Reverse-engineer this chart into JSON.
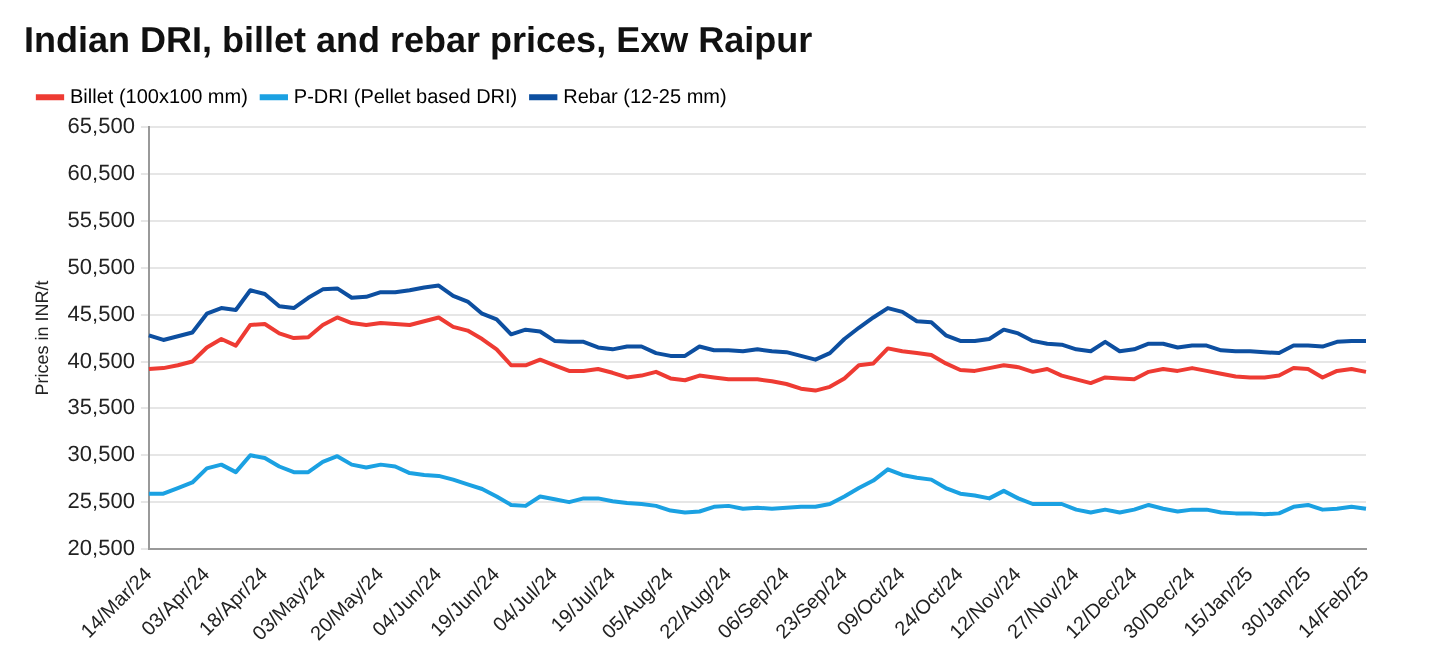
{
  "chart_data": {
    "type": "line",
    "title": "Indian DRI, billet and rebar prices, Exw Raipur",
    "ylabel": "Prices in INR/t",
    "categories": [
      "14/Mar/24",
      null,
      null,
      null,
      "03/Apr/24",
      null,
      null,
      null,
      "18/Apr/24",
      null,
      null,
      null,
      "03/May/24",
      null,
      null,
      null,
      "20/May/24",
      null,
      null,
      null,
      "04/Jun/24",
      null,
      null,
      null,
      "19/Jun/24",
      null,
      null,
      null,
      "04/Jul/24",
      null,
      null,
      null,
      "19/Jul/24",
      null,
      null,
      null,
      "05/Aug/24",
      null,
      null,
      null,
      "22/Aug/24",
      null,
      null,
      null,
      "06/Sep/24",
      null,
      null,
      null,
      "23/Sep/24",
      null,
      null,
      null,
      "09/Oct/24",
      null,
      null,
      null,
      "24/Oct/24",
      null,
      null,
      null,
      "12/Nov/24",
      null,
      null,
      null,
      "27/Nov/24",
      null,
      null,
      null,
      "12/Dec/24",
      null,
      null,
      null,
      "30/Dec/24",
      null,
      null,
      null,
      "15/Jan/25",
      null,
      null,
      null,
      "30/Jan/25",
      null,
      null,
      null,
      "14/Feb/25"
    ],
    "series": [
      {
        "name": "Billet (100x100 mm)",
        "color": "#ee3b33",
        "values": [
          39700,
          39800,
          40100,
          40500,
          42000,
          42900,
          42200,
          44400,
          44500,
          43500,
          43000,
          43100,
          44400,
          45200,
          44600,
          44400,
          44600,
          44500,
          44400,
          44800,
          45200,
          44200,
          43800,
          42900,
          41800,
          40100,
          40100,
          40700,
          40100,
          39500,
          39500,
          39700,
          39300,
          38800,
          39000,
          39400,
          38700,
          38500,
          39000,
          38800,
          38600,
          38600,
          38600,
          38400,
          38100,
          37600,
          37400,
          37800,
          38700,
          40100,
          40300,
          41900,
          41600,
          41400,
          41200,
          40300,
          39600,
          39500,
          39800,
          40100,
          39900,
          39400,
          39700,
          39000,
          38600,
          38200,
          38800,
          38700,
          38600,
          39400,
          39700,
          39500,
          39800,
          39500,
          39200,
          38900,
          38800,
          38800,
          39000,
          39800,
          39700,
          38800,
          39500,
          39700,
          39400
        ]
      },
      {
        "name": "P-DRI (Pellet based DRI)",
        "color": "#1ba1e2",
        "values": [
          26400,
          26400,
          27000,
          27600,
          29100,
          29500,
          28700,
          30500,
          30200,
          29300,
          28700,
          28700,
          29800,
          30400,
          29500,
          29200,
          29500,
          29300,
          28600,
          28400,
          28300,
          27900,
          27400,
          26900,
          26100,
          25200,
          25100,
          26100,
          25800,
          25500,
          25900,
          25900,
          25600,
          25400,
          25300,
          25100,
          24600,
          24400,
          24500,
          25000,
          25100,
          24800,
          24900,
          24800,
          24900,
          25000,
          25000,
          25300,
          26100,
          27000,
          27800,
          29000,
          28400,
          28100,
          27900,
          27000,
          26400,
          26200,
          25900,
          26700,
          25900,
          25300,
          25300,
          25300,
          24700,
          24400,
          24700,
          24400,
          24700,
          25200,
          24800,
          24500,
          24700,
          24700,
          24400,
          24300,
          24300,
          24200,
          24300,
          25000,
          25200,
          24700,
          24800,
          25000,
          24800
        ]
      },
      {
        "name": "Rebar (12-25 mm)",
        "color": "#0d4fa0",
        "values": [
          43300,
          42800,
          43200,
          43600,
          45600,
          46200,
          46000,
          48100,
          47700,
          46400,
          46200,
          47300,
          48200,
          48300,
          47300,
          47400,
          47900,
          47900,
          48100,
          48400,
          48600,
          47500,
          46900,
          45600,
          45000,
          43400,
          43900,
          43700,
          42700,
          42600,
          42600,
          42000,
          41800,
          42100,
          42100,
          41400,
          41100,
          41100,
          42100,
          41700,
          41700,
          41600,
          41800,
          41600,
          41500,
          41100,
          40700,
          41400,
          42900,
          44100,
          45200,
          46200,
          45800,
          44800,
          44700,
          43300,
          42700,
          42700,
          42900,
          43900,
          43500,
          42700,
          42400,
          42300,
          41800,
          41600,
          42600,
          41600,
          41800,
          42400,
          42400,
          42000,
          42200,
          42200,
          41700,
          41600,
          41600,
          41500,
          41400,
          42200,
          42200,
          42100,
          42600,
          42700,
          42700
        ]
      }
    ],
    "ylim": [
      20500,
      65500
    ],
    "yticks": [
      {
        "value": 20500,
        "label": "20,500"
      },
      {
        "value": 25500,
        "label": "25,500"
      },
      {
        "value": 30500,
        "label": "30,500"
      },
      {
        "value": 35500,
        "label": "35,500"
      },
      {
        "value": 40500,
        "label": "40,500"
      },
      {
        "value": 45500,
        "label": "45,500"
      },
      {
        "value": 50500,
        "label": "50,500"
      },
      {
        "value": 55500,
        "label": "55,500"
      },
      {
        "value": 60500,
        "label": "60,500"
      },
      {
        "value": 65500,
        "label": "65,500"
      }
    ],
    "grid": "y",
    "legend": "top",
    "marker": "none",
    "line_style": "solid"
  }
}
